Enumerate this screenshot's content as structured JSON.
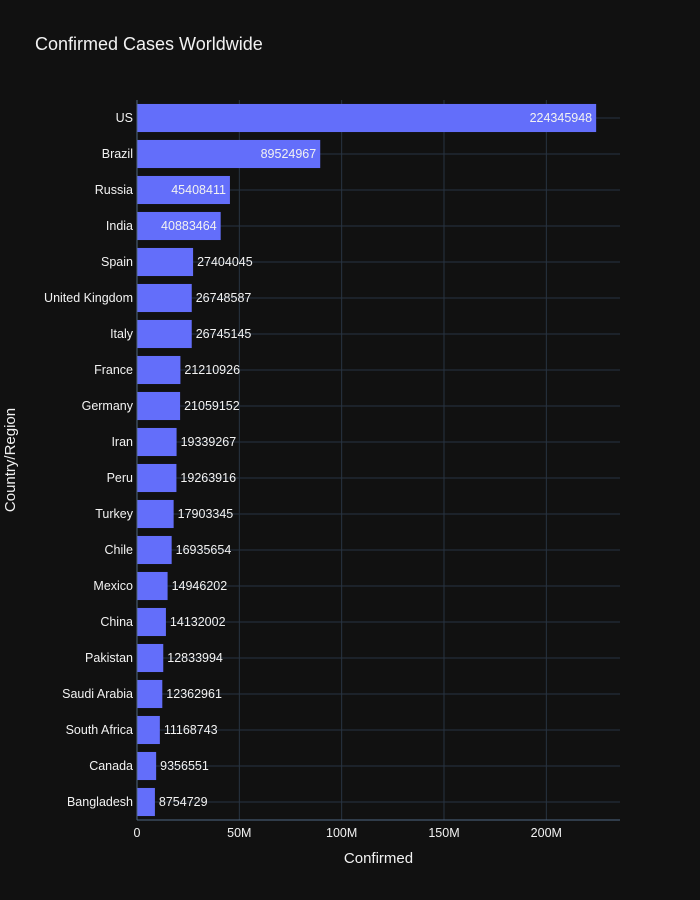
{
  "chart_data": {
    "type": "bar",
    "orientation": "horizontal",
    "title": "Confirmed Cases Worldwide",
    "xlabel": "Confirmed",
    "ylabel": "Country/Region",
    "categories": [
      "US",
      "Brazil",
      "Russia",
      "India",
      "Spain",
      "United Kingdom",
      "Italy",
      "France",
      "Germany",
      "Iran",
      "Peru",
      "Turkey",
      "Chile",
      "Mexico",
      "China",
      "Pakistan",
      "Saudi Arabia",
      "South Africa",
      "Canada",
      "Bangladesh"
    ],
    "values": [
      224345948,
      89524967,
      45408411,
      40883464,
      27404045,
      26748587,
      26745145,
      21210926,
      21059152,
      19339267,
      19263916,
      17903345,
      16935654,
      14946202,
      14132002,
      12833994,
      12362961,
      11168743,
      9356551,
      8754729
    ],
    "xlim": [
      0,
      236000000
    ],
    "x_ticks": [
      0,
      50000000,
      100000000,
      150000000,
      200000000
    ],
    "x_tick_labels": [
      "0",
      "50M",
      "100M",
      "150M",
      "200M"
    ],
    "grid": true,
    "colors": {
      "background": "#111111",
      "bar": "#636efa",
      "grid": "#283442",
      "axis_line": "#506784",
      "text": "#f2f2f2"
    }
  }
}
